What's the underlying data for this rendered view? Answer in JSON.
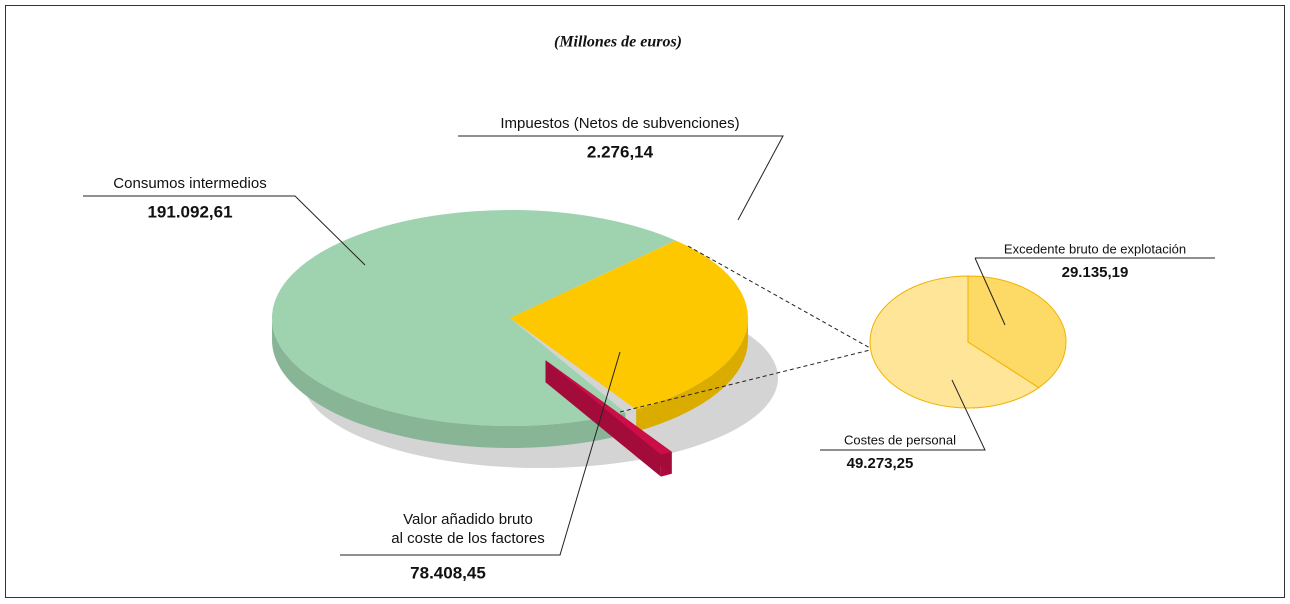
{
  "chart_data": [
    {
      "type": "pie",
      "title": "(Millones de euros)",
      "categories": [
        "Consumos intermedios",
        "Valor añadido bruto\nal coste de los factores",
        "Impuestos (Netos de subvenciones)"
      ],
      "values": [
        191092.61,
        78408.45,
        2276.14
      ],
      "value_labels": [
        "191.092,61",
        "78.408,45",
        "2.276,14"
      ],
      "colors": [
        "#9fd3b0",
        "#fdc800",
        "#cc0e48"
      ]
    },
    {
      "type": "pie",
      "categories": [
        "Excedente bruto de explotación",
        "Costes de personal"
      ],
      "values": [
        29135.19,
        49273.25
      ],
      "value_labels": [
        "29.135,19",
        "49.273,25"
      ],
      "colors": [
        "#fdd966",
        "#fee597"
      ]
    }
  ]
}
